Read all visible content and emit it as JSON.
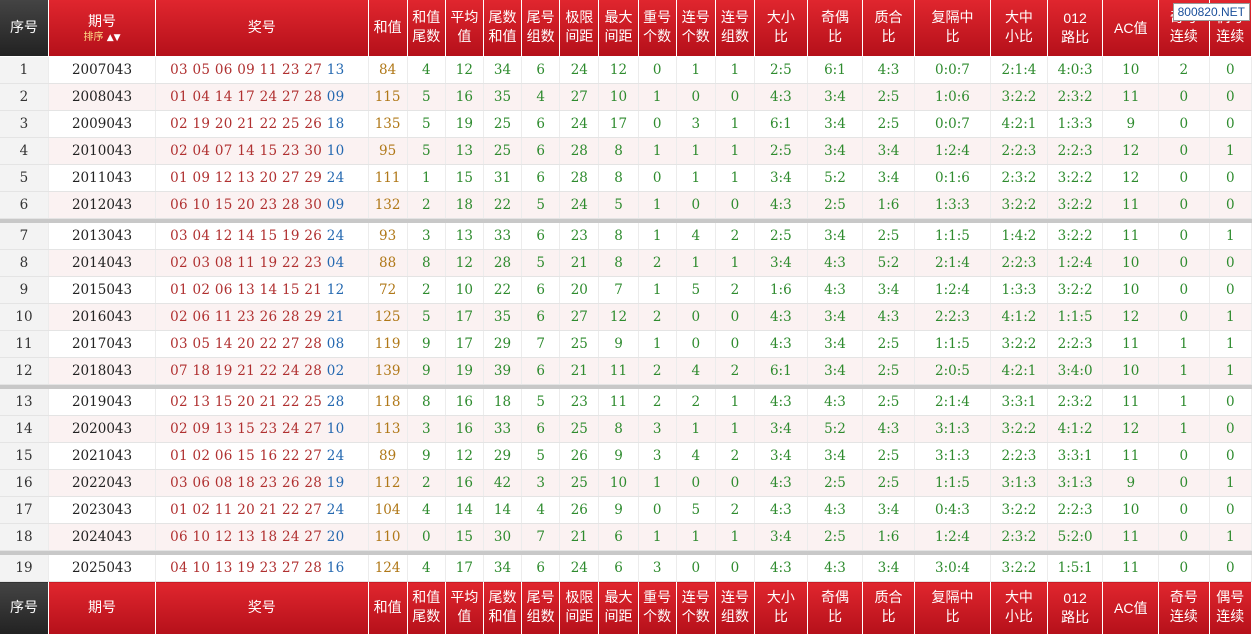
{
  "watermark": "800820.NET",
  "headers": {
    "idx": "序号",
    "period": "期号",
    "sort": "排序",
    "nums": "奖号",
    "sum": "和值",
    "sum_tail": "和值尾数",
    "avg": "平均值",
    "tail_sum": "尾数和值",
    "tail_groups": "尾号组数",
    "range": "极限间距",
    "max_gap": "最大间距",
    "repeat": "重号个数",
    "consec": "连号个数",
    "consec_groups": "连号组数",
    "big_small": "大小比",
    "odd_even": "奇偶比",
    "prime_comp": "质合比",
    "rep_mid": "复隔中比",
    "big_mid_small": "大中小比",
    "road012": "012路比",
    "ac": "AC值",
    "odd_consec": "奇号连续",
    "even_consec": "偶号连续"
  },
  "rows": [
    {
      "idx": "1",
      "period": "2007043",
      "nums": [
        "03",
        "05",
        "06",
        "09",
        "11",
        "23",
        "27"
      ],
      "special": "13",
      "sum": "84",
      "sum_tail": "4",
      "avg": "12",
      "tail_sum": "34",
      "tail_groups": "6",
      "range": "24",
      "max_gap": "12",
      "repeat": "0",
      "consec": "1",
      "consec_groups": "1",
      "big_small": "2:5",
      "odd_even": "6:1",
      "prime_comp": "4:3",
      "rep_mid": "0:0:7",
      "big_mid_small": "2:1:4",
      "road012": "4:0:3",
      "ac": "10",
      "odd_consec": "2",
      "even_consec": "0"
    },
    {
      "idx": "2",
      "period": "2008043",
      "nums": [
        "01",
        "04",
        "14",
        "17",
        "24",
        "27",
        "28"
      ],
      "special": "09",
      "sum": "115",
      "sum_tail": "5",
      "avg": "16",
      "tail_sum": "35",
      "tail_groups": "4",
      "range": "27",
      "max_gap": "10",
      "repeat": "1",
      "consec": "0",
      "consec_groups": "0",
      "big_small": "4:3",
      "odd_even": "3:4",
      "prime_comp": "2:5",
      "rep_mid": "1:0:6",
      "big_mid_small": "3:2:2",
      "road012": "2:3:2",
      "ac": "11",
      "odd_consec": "0",
      "even_consec": "0"
    },
    {
      "idx": "3",
      "period": "2009043",
      "nums": [
        "02",
        "19",
        "20",
        "21",
        "22",
        "25",
        "26"
      ],
      "special": "18",
      "sum": "135",
      "sum_tail": "5",
      "avg": "19",
      "tail_sum": "25",
      "tail_groups": "6",
      "range": "24",
      "max_gap": "17",
      "repeat": "0",
      "consec": "3",
      "consec_groups": "1",
      "big_small": "6:1",
      "odd_even": "3:4",
      "prime_comp": "2:5",
      "rep_mid": "0:0:7",
      "big_mid_small": "4:2:1",
      "road012": "1:3:3",
      "ac": "9",
      "odd_consec": "0",
      "even_consec": "0"
    },
    {
      "idx": "4",
      "period": "2010043",
      "nums": [
        "02",
        "04",
        "07",
        "14",
        "15",
        "23",
        "30"
      ],
      "special": "10",
      "sum": "95",
      "sum_tail": "5",
      "avg": "13",
      "tail_sum": "25",
      "tail_groups": "6",
      "range": "28",
      "max_gap": "8",
      "repeat": "1",
      "consec": "1",
      "consec_groups": "1",
      "big_small": "2:5",
      "odd_even": "3:4",
      "prime_comp": "3:4",
      "rep_mid": "1:2:4",
      "big_mid_small": "2:2:3",
      "road012": "2:2:3",
      "ac": "12",
      "odd_consec": "0",
      "even_consec": "1"
    },
    {
      "idx": "5",
      "period": "2011043",
      "nums": [
        "01",
        "09",
        "12",
        "13",
        "20",
        "27",
        "29"
      ],
      "special": "24",
      "sum": "111",
      "sum_tail": "1",
      "avg": "15",
      "tail_sum": "31",
      "tail_groups": "6",
      "range": "28",
      "max_gap": "8",
      "repeat": "0",
      "consec": "1",
      "consec_groups": "1",
      "big_small": "3:4",
      "odd_even": "5:2",
      "prime_comp": "3:4",
      "rep_mid": "0:1:6",
      "big_mid_small": "2:3:2",
      "road012": "3:2:2",
      "ac": "12",
      "odd_consec": "0",
      "even_consec": "0"
    },
    {
      "idx": "6",
      "period": "2012043",
      "nums": [
        "06",
        "10",
        "15",
        "20",
        "23",
        "28",
        "30"
      ],
      "special": "09",
      "sum": "132",
      "sum_tail": "2",
      "avg": "18",
      "tail_sum": "22",
      "tail_groups": "5",
      "range": "24",
      "max_gap": "5",
      "repeat": "1",
      "consec": "0",
      "consec_groups": "0",
      "big_small": "4:3",
      "odd_even": "2:5",
      "prime_comp": "1:6",
      "rep_mid": "1:3:3",
      "big_mid_small": "3:2:2",
      "road012": "3:2:2",
      "ac": "11",
      "odd_consec": "0",
      "even_consec": "0"
    },
    {
      "idx": "7",
      "period": "2013043",
      "nums": [
        "03",
        "04",
        "12",
        "14",
        "15",
        "19",
        "26"
      ],
      "special": "24",
      "sum": "93",
      "sum_tail": "3",
      "avg": "13",
      "tail_sum": "33",
      "tail_groups": "6",
      "range": "23",
      "max_gap": "8",
      "repeat": "1",
      "consec": "4",
      "consec_groups": "2",
      "big_small": "2:5",
      "odd_even": "3:4",
      "prime_comp": "2:5",
      "rep_mid": "1:1:5",
      "big_mid_small": "1:4:2",
      "road012": "3:2:2",
      "ac": "11",
      "odd_consec": "0",
      "even_consec": "1"
    },
    {
      "idx": "8",
      "period": "2014043",
      "nums": [
        "02",
        "03",
        "08",
        "11",
        "19",
        "22",
        "23"
      ],
      "special": "04",
      "sum": "88",
      "sum_tail": "8",
      "avg": "12",
      "tail_sum": "28",
      "tail_groups": "5",
      "range": "21",
      "max_gap": "8",
      "repeat": "2",
      "consec": "1",
      "consec_groups": "1",
      "big_small": "3:4",
      "odd_even": "4:3",
      "prime_comp": "5:2",
      "rep_mid": "2:1:4",
      "big_mid_small": "2:2:3",
      "road012": "1:2:4",
      "ac": "10",
      "odd_consec": "0",
      "even_consec": "0"
    },
    {
      "idx": "9",
      "period": "2015043",
      "nums": [
        "01",
        "02",
        "06",
        "13",
        "14",
        "15",
        "21"
      ],
      "special": "12",
      "sum": "72",
      "sum_tail": "2",
      "avg": "10",
      "tail_sum": "22",
      "tail_groups": "6",
      "range": "20",
      "max_gap": "7",
      "repeat": "1",
      "consec": "5",
      "consec_groups": "2",
      "big_small": "1:6",
      "odd_even": "4:3",
      "prime_comp": "3:4",
      "rep_mid": "1:2:4",
      "big_mid_small": "1:3:3",
      "road012": "3:2:2",
      "ac": "10",
      "odd_consec": "0",
      "even_consec": "0"
    },
    {
      "idx": "10",
      "period": "2016043",
      "nums": [
        "02",
        "06",
        "11",
        "23",
        "26",
        "28",
        "29"
      ],
      "special": "21",
      "sum": "125",
      "sum_tail": "5",
      "avg": "17",
      "tail_sum": "35",
      "tail_groups": "6",
      "range": "27",
      "max_gap": "12",
      "repeat": "2",
      "consec": "0",
      "consec_groups": "0",
      "big_small": "4:3",
      "odd_even": "3:4",
      "prime_comp": "4:3",
      "rep_mid": "2:2:3",
      "big_mid_small": "4:1:2",
      "road012": "1:1:5",
      "ac": "12",
      "odd_consec": "0",
      "even_consec": "1"
    },
    {
      "idx": "11",
      "period": "2017043",
      "nums": [
        "03",
        "05",
        "14",
        "20",
        "22",
        "27",
        "28"
      ],
      "special": "08",
      "sum": "119",
      "sum_tail": "9",
      "avg": "17",
      "tail_sum": "29",
      "tail_groups": "7",
      "range": "25",
      "max_gap": "9",
      "repeat": "1",
      "consec": "0",
      "consec_groups": "0",
      "big_small": "4:3",
      "odd_even": "3:4",
      "prime_comp": "2:5",
      "rep_mid": "1:1:5",
      "big_mid_small": "3:2:2",
      "road012": "2:2:3",
      "ac": "11",
      "odd_consec": "1",
      "even_consec": "1"
    },
    {
      "idx": "12",
      "period": "2018043",
      "nums": [
        "07",
        "18",
        "19",
        "21",
        "22",
        "24",
        "28"
      ],
      "special": "02",
      "sum": "139",
      "sum_tail": "9",
      "avg": "19",
      "tail_sum": "39",
      "tail_groups": "6",
      "range": "21",
      "max_gap": "11",
      "repeat": "2",
      "consec": "4",
      "consec_groups": "2",
      "big_small": "6:1",
      "odd_even": "3:4",
      "prime_comp": "2:5",
      "rep_mid": "2:0:5",
      "big_mid_small": "4:2:1",
      "road012": "3:4:0",
      "ac": "10",
      "odd_consec": "1",
      "even_consec": "1"
    },
    {
      "idx": "13",
      "period": "2019043",
      "nums": [
        "02",
        "13",
        "15",
        "20",
        "21",
        "22",
        "25"
      ],
      "special": "28",
      "sum": "118",
      "sum_tail": "8",
      "avg": "16",
      "tail_sum": "18",
      "tail_groups": "5",
      "range": "23",
      "max_gap": "11",
      "repeat": "2",
      "consec": "2",
      "consec_groups": "1",
      "big_small": "4:3",
      "odd_even": "4:3",
      "prime_comp": "2:5",
      "rep_mid": "2:1:4",
      "big_mid_small": "3:3:1",
      "road012": "2:3:2",
      "ac": "11",
      "odd_consec": "1",
      "even_consec": "0"
    },
    {
      "idx": "14",
      "period": "2020043",
      "nums": [
        "02",
        "09",
        "13",
        "15",
        "23",
        "24",
        "27"
      ],
      "special": "10",
      "sum": "113",
      "sum_tail": "3",
      "avg": "16",
      "tail_sum": "33",
      "tail_groups": "6",
      "range": "25",
      "max_gap": "8",
      "repeat": "3",
      "consec": "1",
      "consec_groups": "1",
      "big_small": "3:4",
      "odd_even": "5:2",
      "prime_comp": "4:3",
      "rep_mid": "3:1:3",
      "big_mid_small": "3:2:2",
      "road012": "4:1:2",
      "ac": "12",
      "odd_consec": "1",
      "even_consec": "0"
    },
    {
      "idx": "15",
      "period": "2021043",
      "nums": [
        "01",
        "02",
        "06",
        "15",
        "16",
        "22",
        "27"
      ],
      "special": "24",
      "sum": "89",
      "sum_tail": "9",
      "avg": "12",
      "tail_sum": "29",
      "tail_groups": "5",
      "range": "26",
      "max_gap": "9",
      "repeat": "3",
      "consec": "4",
      "consec_groups": "2",
      "big_small": "3:4",
      "odd_even": "3:4",
      "prime_comp": "2:5",
      "rep_mid": "3:1:3",
      "big_mid_small": "2:2:3",
      "road012": "3:3:1",
      "ac": "11",
      "odd_consec": "0",
      "even_consec": "0"
    },
    {
      "idx": "16",
      "period": "2022043",
      "nums": [
        "03",
        "06",
        "08",
        "18",
        "23",
        "26",
        "28"
      ],
      "special": "19",
      "sum": "112",
      "sum_tail": "2",
      "avg": "16",
      "tail_sum": "42",
      "tail_groups": "3",
      "range": "25",
      "max_gap": "10",
      "repeat": "1",
      "consec": "0",
      "consec_groups": "0",
      "big_small": "4:3",
      "odd_even": "2:5",
      "prime_comp": "2:5",
      "rep_mid": "1:1:5",
      "big_mid_small": "3:1:3",
      "road012": "3:1:3",
      "ac": "9",
      "odd_consec": "0",
      "even_consec": "1"
    },
    {
      "idx": "17",
      "period": "2023043",
      "nums": [
        "01",
        "02",
        "11",
        "20",
        "21",
        "22",
        "27"
      ],
      "special": "24",
      "sum": "104",
      "sum_tail": "4",
      "avg": "14",
      "tail_sum": "14",
      "tail_groups": "4",
      "range": "26",
      "max_gap": "9",
      "repeat": "0",
      "consec": "5",
      "consec_groups": "2",
      "big_small": "4:3",
      "odd_even": "4:3",
      "prime_comp": "3:4",
      "rep_mid": "0:4:3",
      "big_mid_small": "3:2:2",
      "road012": "2:2:3",
      "ac": "10",
      "odd_consec": "0",
      "even_consec": "0"
    },
    {
      "idx": "18",
      "period": "2024043",
      "nums": [
        "06",
        "10",
        "12",
        "13",
        "18",
        "24",
        "27"
      ],
      "special": "20",
      "sum": "110",
      "sum_tail": "0",
      "avg": "15",
      "tail_sum": "30",
      "tail_groups": "7",
      "range": "21",
      "max_gap": "6",
      "repeat": "1",
      "consec": "1",
      "consec_groups": "1",
      "big_small": "3:4",
      "odd_even": "2:5",
      "prime_comp": "1:6",
      "rep_mid": "1:2:4",
      "big_mid_small": "2:3:2",
      "road012": "5:2:0",
      "ac": "11",
      "odd_consec": "0",
      "even_consec": "1"
    },
    {
      "idx": "19",
      "period": "2025043",
      "nums": [
        "04",
        "10",
        "13",
        "19",
        "23",
        "27",
        "28"
      ],
      "special": "16",
      "sum": "124",
      "sum_tail": "4",
      "avg": "17",
      "tail_sum": "34",
      "tail_groups": "6",
      "range": "24",
      "max_gap": "6",
      "repeat": "3",
      "consec": "0",
      "consec_groups": "0",
      "big_small": "4:3",
      "odd_even": "4:3",
      "prime_comp": "3:4",
      "rep_mid": "3:0:4",
      "big_mid_small": "3:2:2",
      "road012": "1:5:1",
      "ac": "11",
      "odd_consec": "0",
      "even_consec": "0"
    }
  ]
}
